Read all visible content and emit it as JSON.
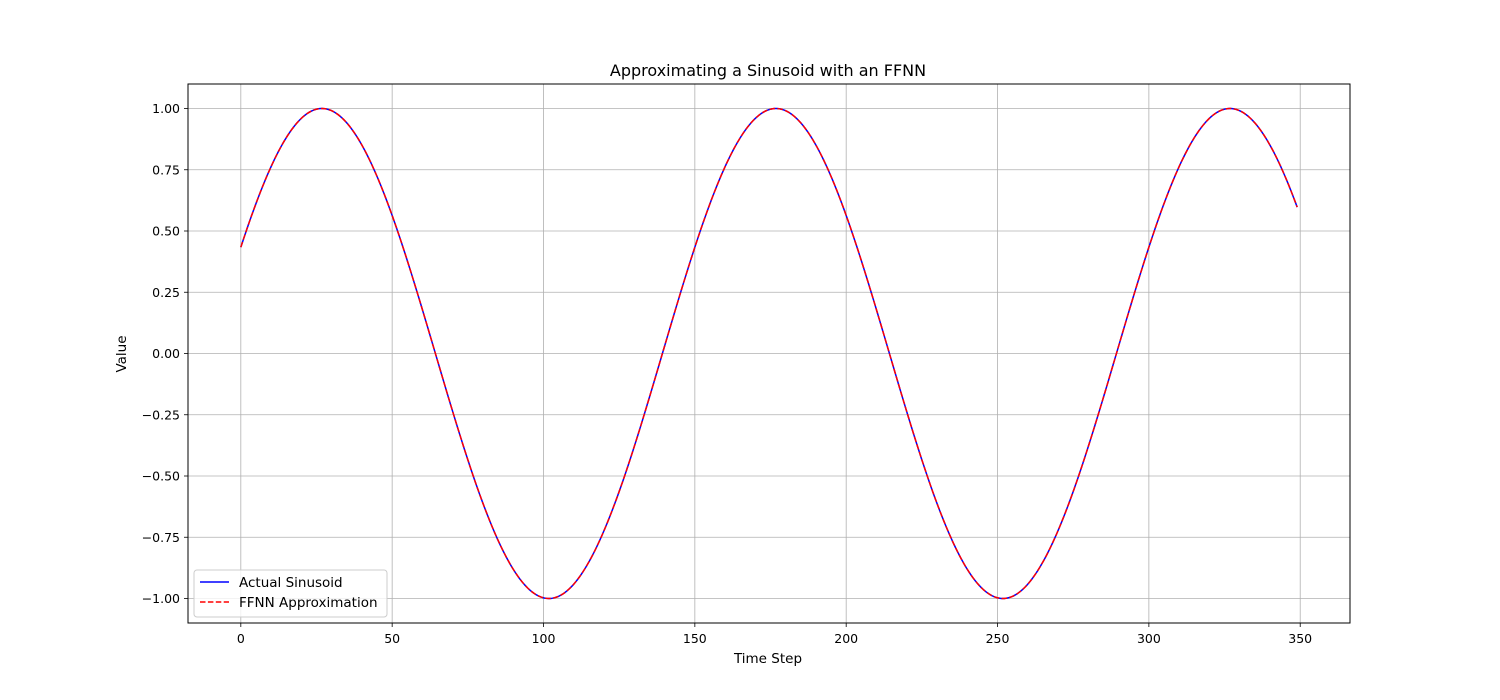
{
  "chart_data": {
    "type": "line",
    "title": "Approximating a Sinusoid with an FFNN",
    "xlabel": "Time Step",
    "ylabel": "Value",
    "xlim": [
      -17.45,
      366.45
    ],
    "ylim": [
      -1.1,
      1.1
    ],
    "x_ticks": [
      0,
      50,
      100,
      150,
      200,
      250,
      300,
      350
    ],
    "x_tick_labels": [
      "0",
      "50",
      "100",
      "150",
      "200",
      "250",
      "300",
      "350"
    ],
    "y_ticks": [
      1.0,
      0.75,
      0.5,
      0.25,
      0.0,
      -0.25,
      -0.5,
      -0.75,
      -1.0
    ],
    "y_tick_labels": [
      "1.00",
      "0.75",
      "0.50",
      "0.25",
      "0.00",
      "−0.25",
      "−0.50",
      "−0.75",
      "−1.00"
    ],
    "grid": true,
    "legend_position": "lower-left",
    "x_range": [
      0,
      349
    ],
    "series": [
      {
        "name": "Actual Sinusoid",
        "color": "#0000ff",
        "style": "solid",
        "function": "sin",
        "amplitude": 1.0,
        "period": 150,
        "phase": 0.4488,
        "samples": [
          [
            0,
            0.434
          ],
          [
            27,
            1.0
          ],
          [
            50,
            0.55
          ],
          [
            64,
            0.0
          ],
          [
            102,
            -1.0
          ],
          [
            139,
            0.0
          ],
          [
            177,
            1.0
          ],
          [
            214,
            0.0
          ],
          [
            252,
            -1.0
          ],
          [
            289,
            0.0
          ],
          [
            327,
            1.0
          ],
          [
            349,
            0.59
          ]
        ]
      },
      {
        "name": "FFNN Approximation",
        "color": "#ff0000",
        "style": "dashed",
        "function": "sin",
        "amplitude": 1.0,
        "period": 150,
        "phase": 0.4488,
        "samples": [
          [
            0,
            0.434
          ],
          [
            27,
            1.0
          ],
          [
            50,
            0.55
          ],
          [
            64,
            0.0
          ],
          [
            102,
            -1.0
          ],
          [
            139,
            0.0
          ],
          [
            177,
            1.0
          ],
          [
            214,
            0.0
          ],
          [
            252,
            -1.0
          ],
          [
            289,
            0.0
          ],
          [
            327,
            1.0
          ],
          [
            349,
            0.59
          ]
        ]
      }
    ]
  }
}
